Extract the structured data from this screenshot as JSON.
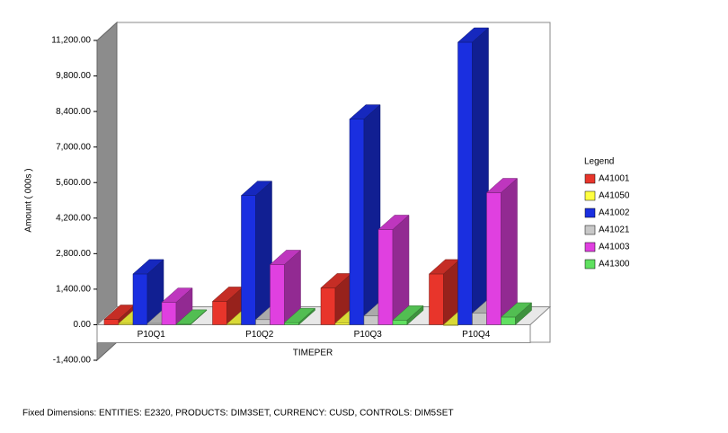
{
  "chart_data": {
    "type": "bar3d",
    "y_label": "Amount ( 000s )",
    "x_label": "TIMEPER",
    "legend_title": "Legend",
    "footer": "Fixed Dimensions: ENTITIES: E2320, PRODUCTS: DIM3SET, CURRENCY: CUSD, CONTROLS: DIM5SET",
    "categories": [
      "P10Q1",
      "P10Q2",
      "P10Q3",
      "P10Q4"
    ],
    "series": [
      {
        "name": "A41001",
        "color": "#e8352b",
        "values": [
          210,
          920,
          1450,
          2000
        ]
      },
      {
        "name": "A41050",
        "color": "#ffff40",
        "values": [
          50,
          30,
          60,
          -30
        ]
      },
      {
        "name": "A41002",
        "color": "#1a2fe0",
        "values": [
          2000,
          5090,
          8100,
          11130
        ]
      },
      {
        "name": "A41021",
        "color": "#c8c8c8",
        "values": [
          50,
          200,
          350,
          450
        ]
      },
      {
        "name": "A41003",
        "color": "#e040e0",
        "values": [
          880,
          2370,
          3750,
          5200
        ]
      },
      {
        "name": "A41300",
        "color": "#60e060",
        "values": [
          20,
          80,
          180,
          300
        ]
      }
    ],
    "ylim": [
      -1400,
      11200
    ],
    "yticks": [
      {
        "value": -1400,
        "label": "-1,400.00"
      },
      {
        "value": 0,
        "label": "0.00"
      },
      {
        "value": 1400,
        "label": "1,400.00"
      },
      {
        "value": 2800,
        "label": "2,800.00"
      },
      {
        "value": 4200,
        "label": "4,200.00"
      },
      {
        "value": 5600,
        "label": "5,600.00"
      },
      {
        "value": 7000,
        "label": "7,000.00"
      },
      {
        "value": 8400,
        "label": "8,400.00"
      },
      {
        "value": 9800,
        "label": "9,800.00"
      },
      {
        "value": 11200,
        "label": "11,200.00"
      }
    ]
  }
}
